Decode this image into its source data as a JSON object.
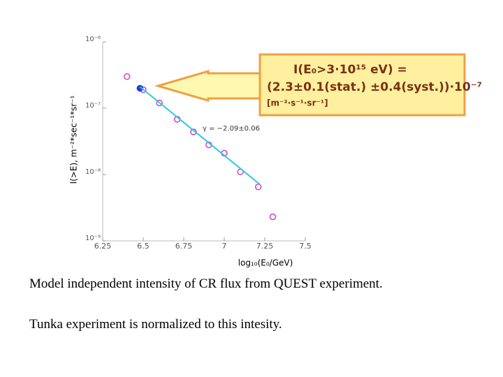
{
  "chart_data": {
    "type": "scatter",
    "y_label": "I(>E), m⁻²*sec⁻¹*sr⁻¹",
    "x_label": "log₁₀(E₀/GeV)",
    "xlim": [
      6.25,
      7.5
    ],
    "xticks": [
      6.25,
      6.5,
      6.75,
      7,
      7.25,
      7.5
    ],
    "ylim": [
      1e-09,
      1e-06
    ],
    "yticks": [
      {
        "value": 1e-09,
        "label": "10⁻⁹"
      },
      {
        "value": 1e-08,
        "label": "10⁻⁸"
      },
      {
        "value": 1e-07,
        "label": "10⁻⁷"
      },
      {
        "value": 1e-06,
        "label": "10⁻⁶"
      }
    ],
    "log_y": true,
    "series": [
      {
        "color": "#d040c0",
        "marker": "open",
        "x": [
          6.4,
          6.5,
          6.6,
          6.71,
          6.81,
          6.905,
          7.0,
          7.1,
          7.21,
          7.3
        ],
        "values": [
          3e-07,
          1.9e-07,
          1.2e-07,
          6.8e-08,
          4.4e-08,
          2.8e-08,
          2.1e-08,
          1.1e-08,
          6.5e-09,
          2.3e-09
        ]
      },
      {
        "color": "#2040d0",
        "marker": "filled",
        "x": [
          6.48
        ],
        "values": [
          2e-07
        ]
      },
      {
        "color": "#30c8e0",
        "marker": "line",
        "x": [
          6.48,
          7.22
        ],
        "values": [
          2.1e-07,
          7.1e-09
        ]
      }
    ],
    "fit_label": "γ = −2.09±0.06",
    "annotation": [
      "I(E₀>3·10¹⁵ eV) =",
      "(2.3±0.1(stat.) ±0.4(syst.))·10⁻⁷",
      "[m⁻²·s⁻¹·sr⁻¹]"
    ]
  },
  "caption": [
    "Model independent intensity of  CR flux from QUEST experiment.",
    "Tunka  experiment is normalized to this intesity."
  ]
}
